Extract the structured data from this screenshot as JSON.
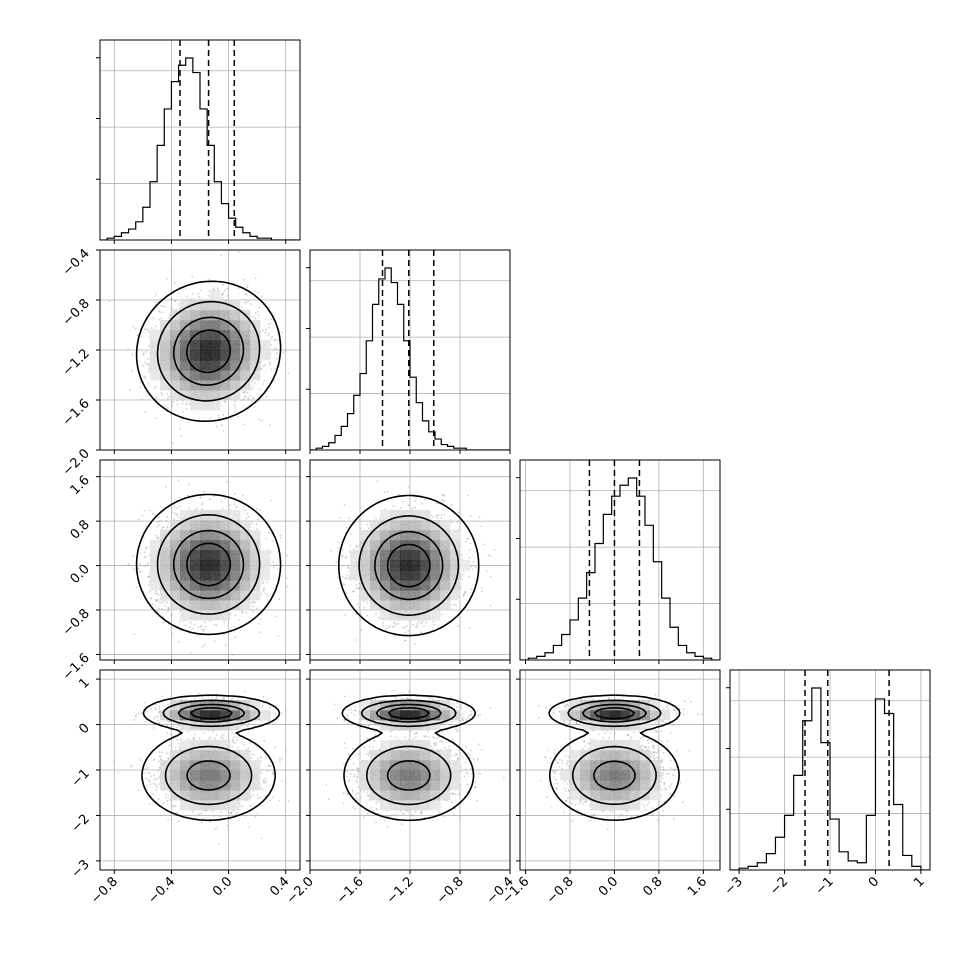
{
  "chart_data": {
    "type": "corner",
    "n_params": 4,
    "grid": true,
    "parameters": [
      {
        "index": 0,
        "range": [
          -0.9,
          0.5
        ],
        "quantiles": [
          -0.34,
          -0.14,
          0.04
        ],
        "ticks": [
          -0.8,
          -0.4,
          0.0,
          0.4
        ],
        "tick_labels": [
          "−0.8",
          "−0.4",
          "0.0",
          "0.4"
        ],
        "hist": {
          "start": -0.9,
          "width": 0.05,
          "counts": [
            0,
            1,
            2,
            4,
            6,
            10,
            18,
            32,
            52,
            72,
            87,
            96,
            100,
            92,
            72,
            52,
            32,
            20,
            12,
            7,
            4,
            2,
            1,
            1,
            0,
            0,
            0,
            0
          ]
        }
      },
      {
        "index": 1,
        "range": [
          -2.0,
          -0.4
        ],
        "quantiles": [
          -1.42,
          -1.21,
          -1.01
        ],
        "ticks": [
          -2.0,
          -1.6,
          -1.2,
          -0.8,
          -0.4
        ],
        "tick_labels": [
          "−2.0",
          "−1.6",
          "−1.2",
          "−0.8",
          "−0.4"
        ],
        "hist": {
          "start": -2.0,
          "width": 0.05,
          "counts": [
            0,
            1,
            2,
            4,
            8,
            13,
            20,
            30,
            42,
            60,
            80,
            94,
            100,
            92,
            80,
            60,
            40,
            26,
            16,
            10,
            6,
            3,
            2,
            1,
            1,
            0,
            0,
            0,
            0,
            0,
            0,
            0
          ]
        }
      },
      {
        "index": 2,
        "range": [
          -1.7,
          1.9
        ],
        "quantiles": [
          -0.45,
          0.0,
          0.45
        ],
        "ticks": [
          -1.6,
          -0.8,
          0.0,
          0.8,
          1.6
        ],
        "tick_labels": [
          "−1.6",
          "−0.8",
          "0.0",
          "0.8",
          "1.6"
        ],
        "hist": {
          "start": -1.7,
          "width": 0.15,
          "counts": [
            0,
            1,
            2,
            4,
            8,
            14,
            22,
            34,
            48,
            64,
            80,
            90,
            96,
            100,
            90,
            74,
            54,
            34,
            18,
            8,
            4,
            2,
            1,
            0
          ]
        }
      },
      {
        "index": 3,
        "range": [
          -3.2,
          1.2
        ],
        "quantiles": [
          -1.55,
          -1.05,
          0.3
        ],
        "ticks": [
          -3,
          -2,
          -1,
          0,
          1
        ],
        "tick_labels": [
          "−3",
          "−2",
          "−1",
          "0",
          "1"
        ],
        "hist": {
          "start": -3.2,
          "width": 0.2,
          "counts": [
            0,
            1,
            2,
            4,
            9,
            18,
            30,
            52,
            82,
            100,
            70,
            28,
            10,
            5,
            4,
            30,
            94,
            86,
            36,
            8,
            2,
            0
          ]
        }
      }
    ],
    "pair_panels": [
      {
        "x_param": 0,
        "y_param": 1,
        "components": [
          {
            "weight": 1.0,
            "mx": -0.14,
            "my": -1.21,
            "sx": 0.18,
            "sy": 0.2,
            "r": 0.05
          }
        ],
        "levels": [
          0.3,
          0.6,
          0.86,
          0.98
        ]
      },
      {
        "x_param": 0,
        "y_param": 2,
        "components": [
          {
            "weight": 1.0,
            "mx": -0.14,
            "my": 0.02,
            "sx": 0.18,
            "sy": 0.45,
            "r": 0.0
          }
        ],
        "levels": [
          0.3,
          0.6,
          0.86,
          0.98
        ]
      },
      {
        "x_param": 1,
        "y_param": 2,
        "components": [
          {
            "weight": 1.0,
            "mx": -1.21,
            "my": 0.0,
            "sx": 0.2,
            "sy": 0.45,
            "r": 0.0
          }
        ],
        "levels": [
          0.3,
          0.6,
          0.86,
          0.98
        ]
      },
      {
        "x_param": 0,
        "y_param": 3,
        "components": [
          {
            "weight": 0.62,
            "mx": -0.14,
            "my": -1.12,
            "sx": 0.18,
            "sy": 0.38,
            "r": 0.0
          },
          {
            "weight": 0.38,
            "mx": -0.12,
            "my": 0.25,
            "sx": 0.17,
            "sy": 0.14,
            "r": 0.0
          }
        ],
        "levels": [
          0.3,
          0.6,
          0.86,
          0.98
        ]
      },
      {
        "x_param": 1,
        "y_param": 3,
        "components": [
          {
            "weight": 0.62,
            "mx": -1.21,
            "my": -1.12,
            "sx": 0.2,
            "sy": 0.38,
            "r": 0.0
          },
          {
            "weight": 0.38,
            "mx": -1.21,
            "my": 0.25,
            "sx": 0.19,
            "sy": 0.14,
            "r": 0.0
          }
        ],
        "levels": [
          0.3,
          0.6,
          0.86,
          0.98
        ]
      },
      {
        "x_param": 2,
        "y_param": 3,
        "components": [
          {
            "weight": 0.62,
            "mx": 0.0,
            "my": -1.12,
            "sx": 0.45,
            "sy": 0.38,
            "r": 0.0
          },
          {
            "weight": 0.38,
            "mx": 0.0,
            "my": 0.25,
            "sx": 0.42,
            "sy": 0.14,
            "r": 0.0
          }
        ],
        "levels": [
          0.3,
          0.6,
          0.86,
          0.98
        ]
      }
    ]
  }
}
